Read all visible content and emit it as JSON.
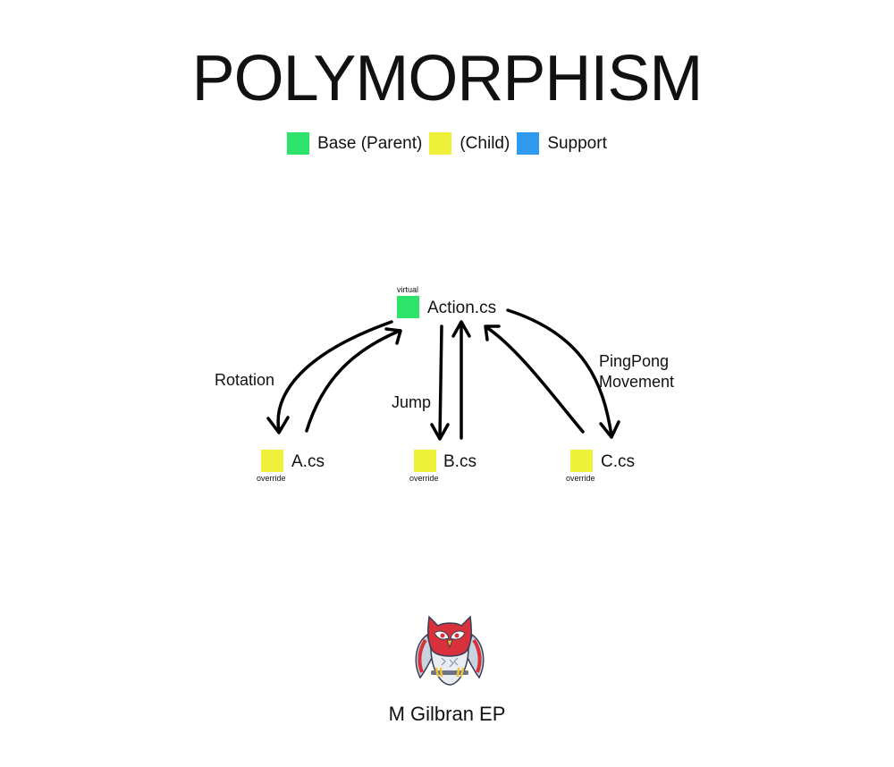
{
  "title": "POLYMORPHISM",
  "legend": [
    {
      "label": "Base (Parent)",
      "color": "#2de36a"
    },
    {
      "label": "(Child)",
      "color": "#eef03a"
    },
    {
      "label": "Support",
      "color": "#2e9bef"
    }
  ],
  "nodes": {
    "action": {
      "label": "Action.cs",
      "modifier": "virtual",
      "color": "#2de36a"
    },
    "a": {
      "label": "A.cs",
      "modifier": "override",
      "color": "#eef03a"
    },
    "b": {
      "label": "B.cs",
      "modifier": "override",
      "color": "#eef03a"
    },
    "c": {
      "label": "C.cs",
      "modifier": "override",
      "color": "#eef03a"
    }
  },
  "edges": {
    "rotation": "Rotation",
    "jump": "Jump",
    "pingpong_line1": "PingPong",
    "pingpong_line2": "Movement"
  },
  "author": "M Gilbran EP",
  "logo_icon": "owl-mascot-icon"
}
